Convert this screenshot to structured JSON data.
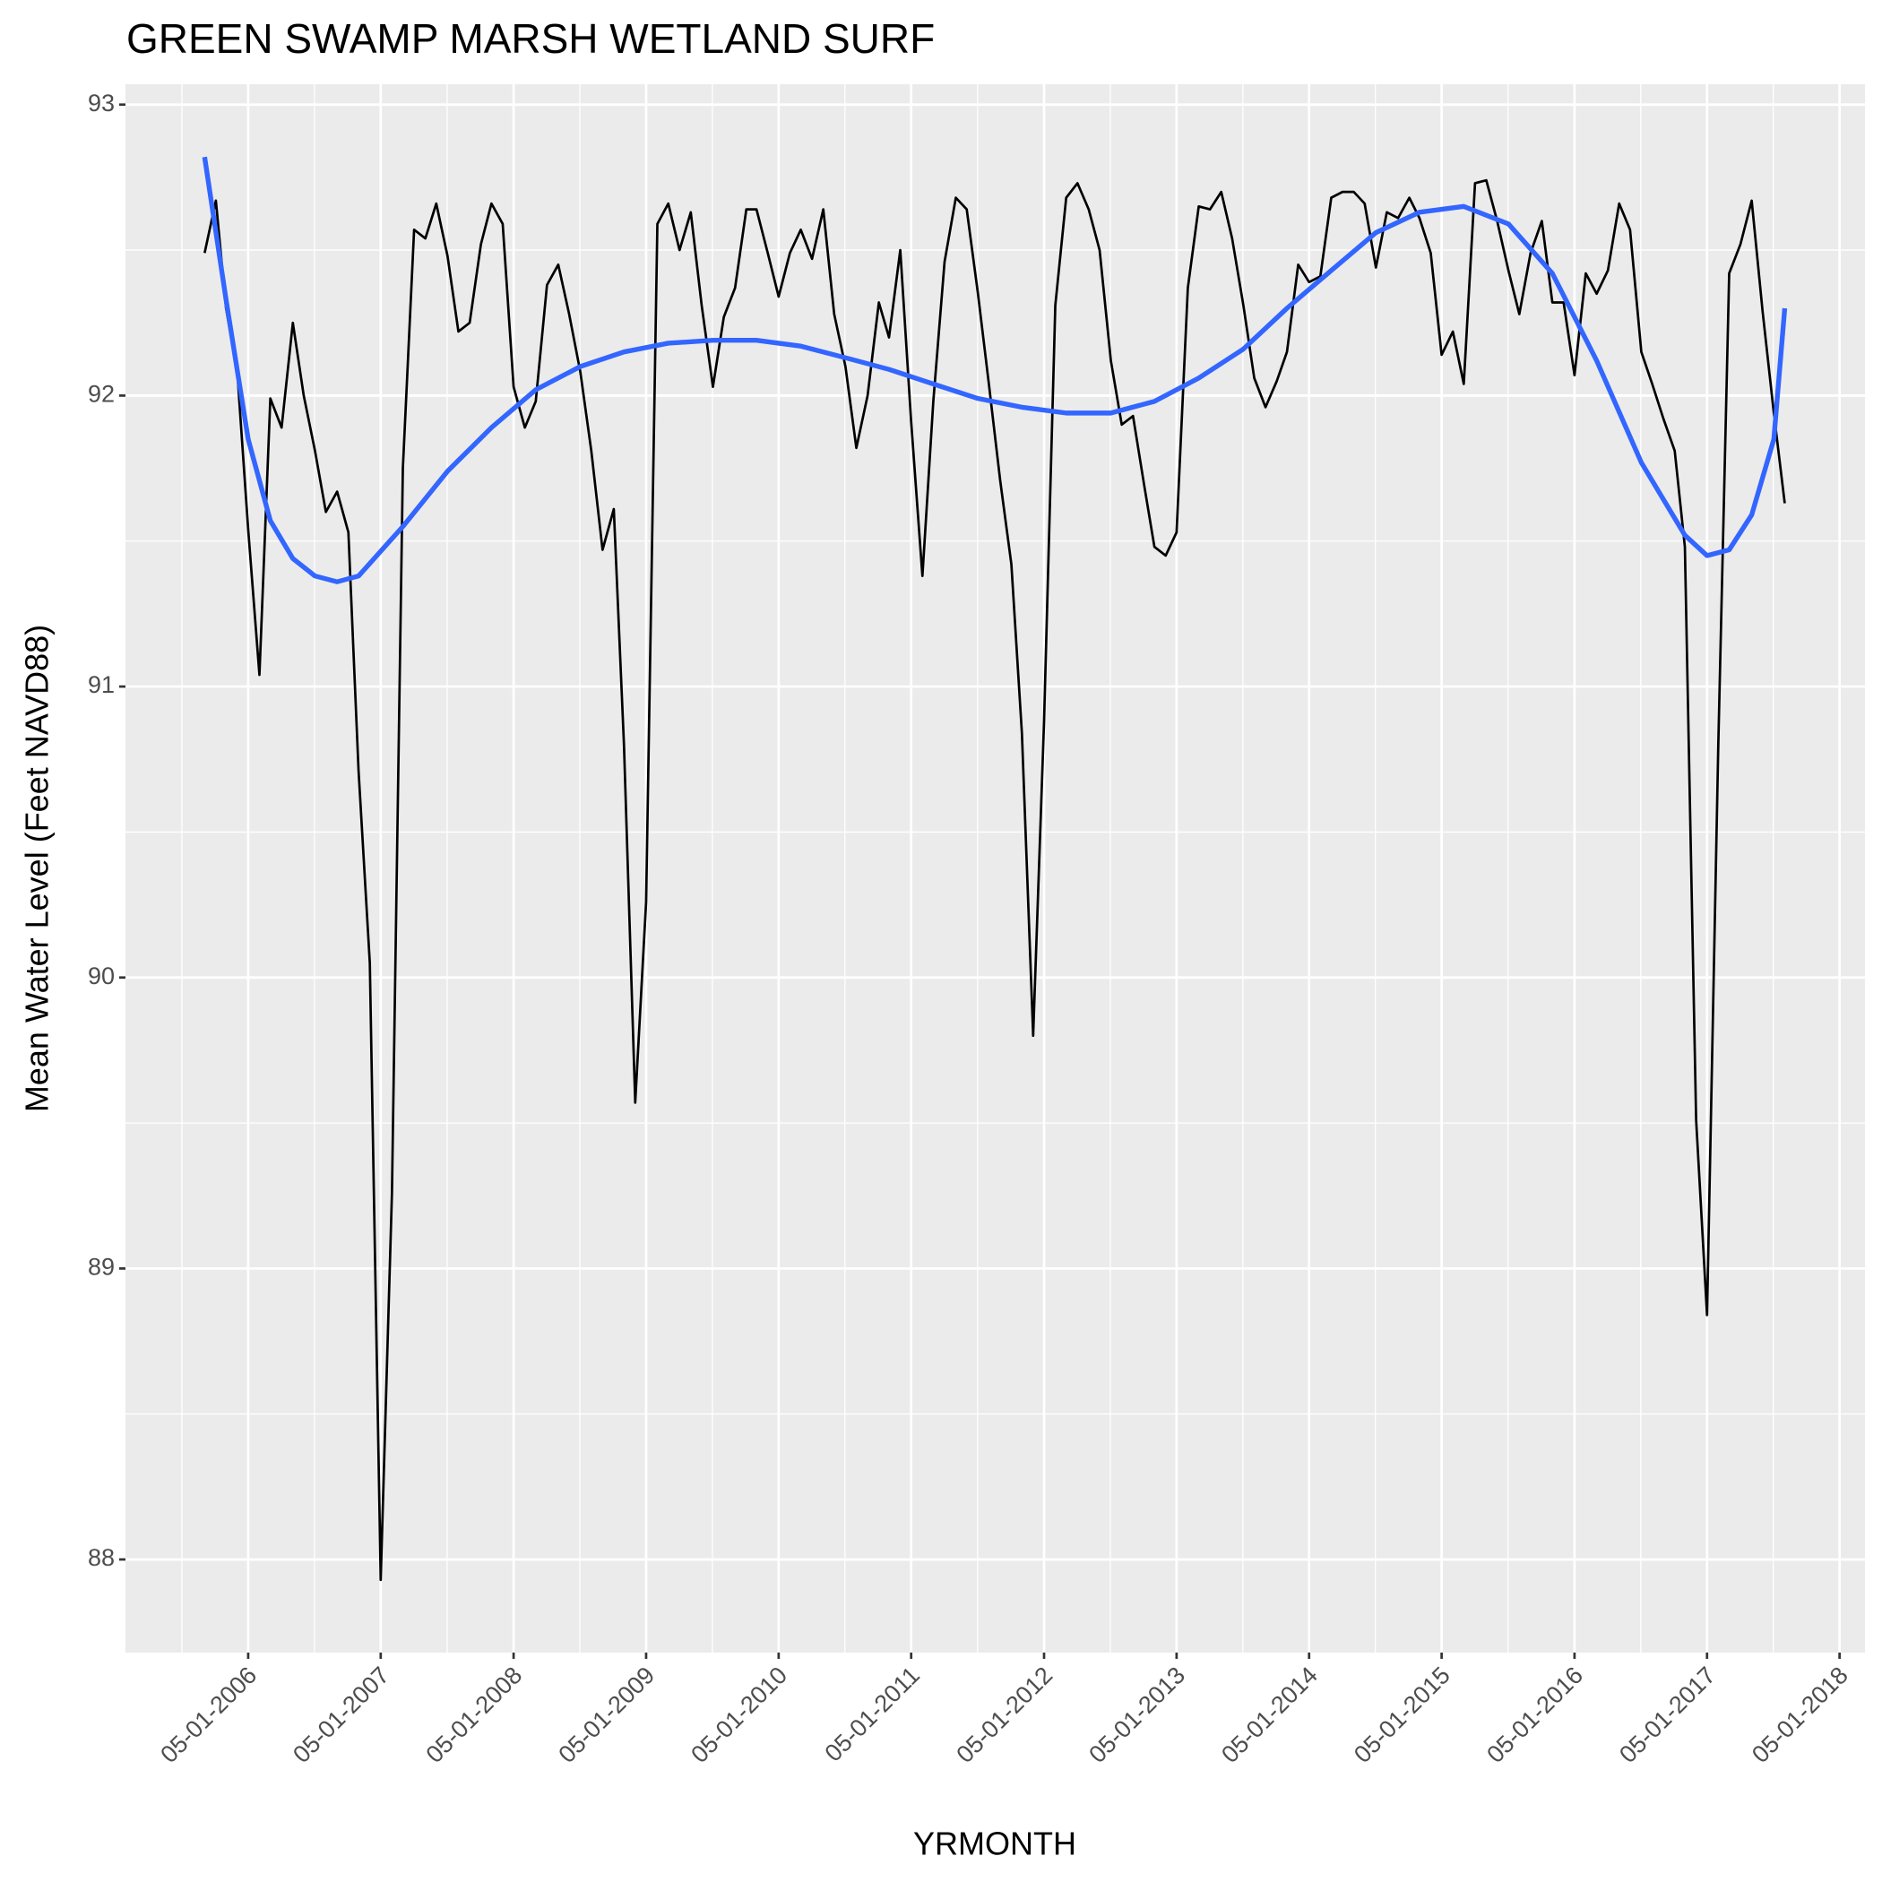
{
  "chart_data": {
    "type": "line",
    "title": "GREEN SWAMP MARSH WETLAND SURF",
    "xlabel": "YRMONTH",
    "ylabel": "Mean Water Level (Feet NAVD88)",
    "x": [
      "2006-01-01",
      "2006-02-01",
      "2006-03-01",
      "2006-04-01",
      "2006-05-01",
      "2006-06-01",
      "2006-07-01",
      "2006-08-01",
      "2006-09-01",
      "2006-10-01",
      "2006-11-01",
      "2006-12-01",
      "2007-01-01",
      "2007-02-01",
      "2007-03-01",
      "2007-04-01",
      "2007-05-01",
      "2007-06-01",
      "2007-07-01",
      "2007-08-01",
      "2007-09-01",
      "2007-10-01",
      "2007-11-01",
      "2007-12-01",
      "2008-01-01",
      "2008-02-01",
      "2008-03-01",
      "2008-04-01",
      "2008-05-01",
      "2008-06-01",
      "2008-07-01",
      "2008-08-01",
      "2008-09-01",
      "2008-10-01",
      "2008-11-01",
      "2008-12-01",
      "2009-01-01",
      "2009-02-01",
      "2009-03-01",
      "2009-04-01",
      "2009-05-01",
      "2009-06-01",
      "2009-07-01",
      "2009-08-01",
      "2009-09-01",
      "2009-10-01",
      "2009-11-01",
      "2009-12-01",
      "2010-01-01",
      "2010-02-01",
      "2010-03-01",
      "2010-04-01",
      "2010-05-01",
      "2010-06-01",
      "2010-07-01",
      "2010-08-01",
      "2010-09-01",
      "2010-10-01",
      "2010-11-01",
      "2010-12-01",
      "2011-01-01",
      "2011-02-01",
      "2011-03-01",
      "2011-04-01",
      "2011-05-01",
      "2011-06-01",
      "2011-07-01",
      "2011-08-01",
      "2011-09-01",
      "2011-10-01",
      "2011-11-01",
      "2011-12-01",
      "2012-01-01",
      "2012-02-01",
      "2012-03-01",
      "2012-04-01",
      "2012-05-01",
      "2012-06-01",
      "2012-07-01",
      "2012-08-01",
      "2012-09-01",
      "2012-10-01",
      "2012-11-01",
      "2012-12-01",
      "2013-01-01",
      "2013-02-01",
      "2013-03-01",
      "2013-04-01",
      "2013-05-01",
      "2013-06-01",
      "2013-07-01",
      "2013-08-01",
      "2013-09-01",
      "2013-10-01",
      "2013-11-01",
      "2013-12-01",
      "2014-01-01",
      "2014-02-01",
      "2014-03-01",
      "2014-04-01",
      "2014-05-01",
      "2014-06-01",
      "2014-07-01",
      "2014-08-01",
      "2014-09-01",
      "2014-10-01",
      "2014-11-01",
      "2014-12-01",
      "2015-01-01",
      "2015-02-01",
      "2015-03-01",
      "2015-04-01",
      "2015-05-01",
      "2015-06-01",
      "2015-07-01",
      "2015-08-01",
      "2015-09-01",
      "2015-10-01",
      "2015-11-01",
      "2015-12-01",
      "2016-01-01",
      "2016-02-01",
      "2016-03-01",
      "2016-04-01",
      "2016-05-01",
      "2016-06-01",
      "2016-07-01",
      "2016-08-01",
      "2016-09-01",
      "2016-10-01",
      "2016-11-01",
      "2016-12-01",
      "2017-01-01",
      "2017-02-01",
      "2017-03-01",
      "2017-04-01",
      "2017-05-01",
      "2017-06-01",
      "2017-07-01",
      "2017-08-01",
      "2017-09-01",
      "2017-10-01",
      "2017-11-01",
      "2017-12-01"
    ],
    "series": [
      {
        "color": "#000000",
        "values": [
          92.49,
          92.67,
          92.3,
          92.08,
          91.54,
          91.04,
          91.99,
          91.89,
          92.25,
          92.0,
          91.81,
          91.6,
          91.67,
          91.53,
          90.71,
          90.05,
          87.93,
          89.26,
          91.75,
          92.57,
          92.54,
          92.66,
          92.48,
          92.22,
          92.25,
          92.52,
          92.66,
          92.59,
          92.03,
          91.89,
          91.98,
          92.38,
          92.45,
          92.28,
          92.08,
          91.81,
          91.47,
          91.61,
          90.8,
          89.57,
          90.26,
          92.59,
          92.66,
          92.5,
          92.63,
          92.31,
          92.03,
          92.27,
          92.37,
          92.64,
          92.64,
          92.49,
          92.34,
          92.49,
          92.57,
          92.47,
          92.64,
          92.28,
          92.1,
          91.82,
          92.0,
          92.32,
          92.2,
          92.5,
          91.91,
          91.38,
          91.98,
          92.46,
          92.68,
          92.64,
          92.35,
          92.04,
          91.71,
          91.42,
          90.84,
          89.8,
          90.88,
          92.31,
          92.68,
          92.73,
          92.64,
          92.5,
          92.12,
          91.9,
          91.93,
          91.69,
          91.48,
          91.45,
          91.53,
          92.37,
          92.65,
          92.64,
          92.7,
          92.54,
          92.31,
          92.06,
          91.96,
          92.05,
          92.15,
          92.45,
          92.39,
          92.41,
          92.68,
          92.7,
          92.7,
          92.66,
          92.44,
          92.63,
          92.61,
          92.68,
          92.61,
          92.49,
          92.14,
          92.22,
          92.04,
          92.73,
          92.74,
          92.6,
          92.43,
          92.28,
          92.49,
          92.6,
          92.32,
          92.32,
          92.07,
          92.42,
          92.35,
          92.43,
          92.66,
          92.57,
          92.15,
          92.04,
          91.92,
          91.81,
          91.48,
          89.51,
          88.84,
          90.8,
          92.42,
          92.52,
          92.67,
          92.29,
          91.94,
          91.63
        ]
      },
      {
        "color": "#3366ff",
        "x": [
          "2006-01-01",
          "2006-03-01",
          "2006-05-01",
          "2006-07-01",
          "2006-09-01",
          "2006-11-01",
          "2007-01-01",
          "2007-03-01",
          "2007-07-01",
          "2007-11-01",
          "2008-03-01",
          "2008-07-01",
          "2008-11-01",
          "2009-03-01",
          "2009-07-01",
          "2009-11-01",
          "2010-03-01",
          "2010-07-01",
          "2010-11-01",
          "2011-03-01",
          "2011-07-01",
          "2011-11-01",
          "2012-03-01",
          "2012-07-01",
          "2012-11-01",
          "2013-03-01",
          "2013-07-01",
          "2013-11-01",
          "2014-03-01",
          "2014-07-01",
          "2014-11-01",
          "2015-03-01",
          "2015-07-01",
          "2015-11-01",
          "2016-03-01",
          "2016-07-01",
          "2016-11-01",
          "2017-03-01",
          "2017-05-01",
          "2017-07-01",
          "2017-09-01",
          "2017-11-01",
          "2017-12-01"
        ],
        "values": [
          92.82,
          92.33,
          91.85,
          91.57,
          91.44,
          91.38,
          91.36,
          91.38,
          91.55,
          91.74,
          91.89,
          92.02,
          92.1,
          92.15,
          92.18,
          92.19,
          92.19,
          92.17,
          92.13,
          92.09,
          92.04,
          91.99,
          91.96,
          91.94,
          91.94,
          91.98,
          92.06,
          92.16,
          92.3,
          92.43,
          92.56,
          92.63,
          92.65,
          92.59,
          92.42,
          92.12,
          91.77,
          91.52,
          91.45,
          91.47,
          91.59,
          91.85,
          92.3
        ]
      }
    ],
    "xlim": [
      "2005-05-28",
      "2018-07-10"
    ],
    "xticks": [
      {
        "value": "2006-05-01",
        "label": "05-01-2006"
      },
      {
        "value": "2007-05-01",
        "label": "05-01-2007"
      },
      {
        "value": "2008-05-01",
        "label": "05-01-2008"
      },
      {
        "value": "2009-05-01",
        "label": "05-01-2009"
      },
      {
        "value": "2010-05-01",
        "label": "05-01-2010"
      },
      {
        "value": "2011-05-01",
        "label": "05-01-2011"
      },
      {
        "value": "2012-05-01",
        "label": "05-01-2012"
      },
      {
        "value": "2013-05-01",
        "label": "05-01-2013"
      },
      {
        "value": "2014-05-01",
        "label": "05-01-2014"
      },
      {
        "value": "2015-05-01",
        "label": "05-01-2015"
      },
      {
        "value": "2016-05-01",
        "label": "05-01-2016"
      },
      {
        "value": "2017-05-01",
        "label": "05-01-2017"
      },
      {
        "value": "2018-05-01",
        "label": "05-01-2018"
      }
    ],
    "ylim": [
      87.68,
      93.07
    ],
    "yticks": [
      88,
      89,
      90,
      91,
      92,
      93
    ],
    "grid": true,
    "minor_grid": true,
    "panel_color": "#ebebeb"
  }
}
